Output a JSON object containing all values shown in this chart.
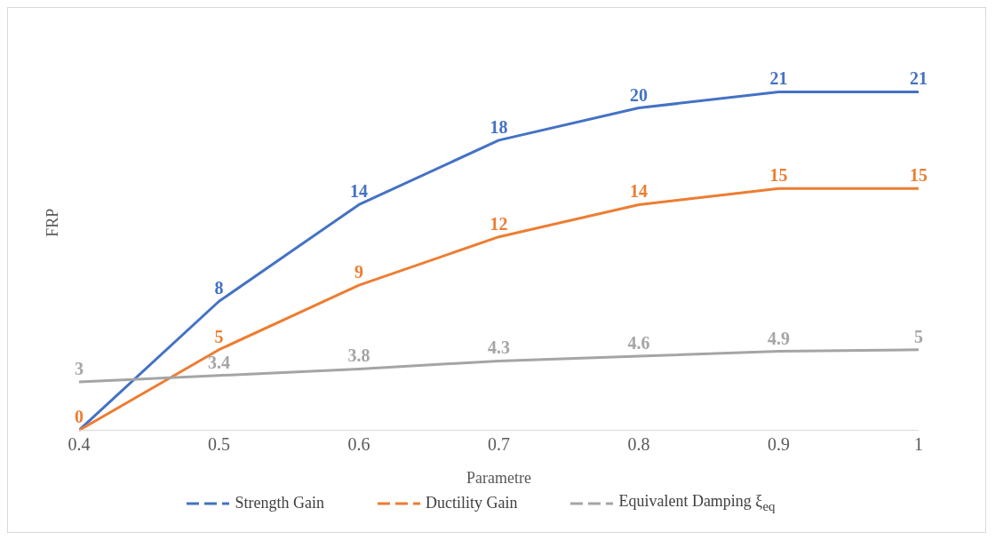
{
  "chart_data": {
    "type": "line",
    "xlabel": "Parametre",
    "ylabel": "FRP",
    "x": [
      0.4,
      0.5,
      0.6,
      0.7,
      0.8,
      0.9,
      1
    ],
    "xlim": [
      0.4,
      1
    ],
    "xticks": [
      0.4,
      0.5,
      0.6,
      0.7,
      0.8,
      0.9,
      1
    ],
    "series": [
      {
        "name": "Strength Gain",
        "color": "#4472c4",
        "values": [
          0,
          8,
          14,
          18,
          20,
          21,
          21
        ],
        "value_labels": [
          null,
          "8",
          "14",
          "18",
          "20",
          "21",
          "21"
        ]
      },
      {
        "name": "Ductility Gain",
        "color": "#ed7d31",
        "values": [
          0,
          5,
          9,
          12,
          14,
          15,
          15
        ]
      },
      {
        "name": "Equivalent Damping ξ$_{eq}$",
        "color": "#a5a5a5",
        "values": [
          3,
          3.4,
          3.8,
          4.3,
          4.6,
          4.9,
          5
        ]
      }
    ],
    "data_labels": true,
    "grid": false,
    "legend": "bottom",
    "tick_labels": "x",
    "marker": "none",
    "line_style": "solid"
  }
}
